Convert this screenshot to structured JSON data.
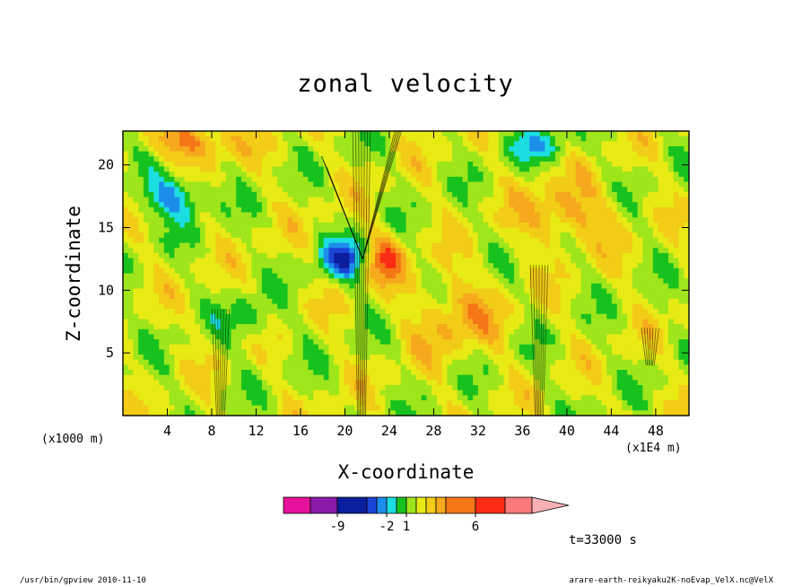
{
  "chart_data": {
    "type": "heatmap",
    "title": "zonal velocity",
    "xlabel": "X-coordinate",
    "ylabel": "Z-coordinate",
    "x_unit_left": "(x1000 m)",
    "x_unit_right": "(x1E4 m)",
    "x_ticks": [
      4,
      8,
      12,
      16,
      20,
      24,
      28,
      32,
      36,
      40,
      44,
      48
    ],
    "y_ticks": [
      5,
      10,
      15,
      20
    ],
    "xlim": [
      0,
      51
    ],
    "ylim": [
      0,
      22.7
    ],
    "colorbar": {
      "colors": [
        "#e6119a",
        "#8c1aa8",
        "#0a1f9e",
        "#1a44d6",
        "#1c8eea",
        "#1cdde0",
        "#18c21e",
        "#9ee51b",
        "#e8ea14",
        "#f2cc17",
        "#f6a91c",
        "#f57617",
        "#fb2c14",
        "#f87a7a",
        "#f6b0b6"
      ],
      "tick_labels": [
        "-9",
        "-2",
        "1",
        "6"
      ]
    },
    "time_label": "t=33000 s"
  },
  "footer": {
    "left": "/usr/bin/gpview 2010-11-10",
    "right": "arare-earth-reikyaku2K-noEvap_VelX.nc@VelX"
  }
}
